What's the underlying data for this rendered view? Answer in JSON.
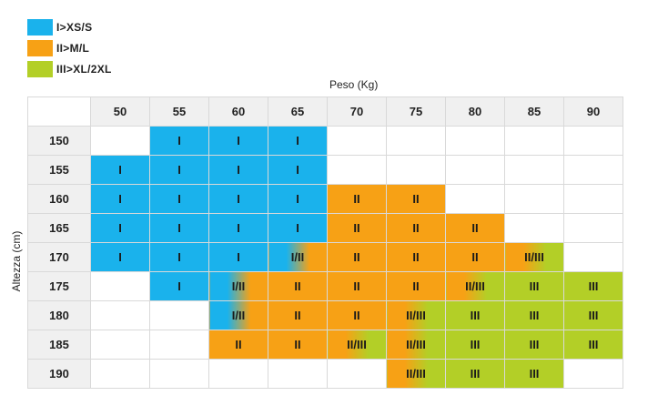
{
  "legend": [
    {
      "label": "I>XS/S",
      "color": "#1ab2ec"
    },
    {
      "label": "II>M/L",
      "color": "#f7a115"
    },
    {
      "label": "III>XL/2XL",
      "color": "#b3cf27"
    }
  ],
  "chart_data": {
    "type": "table",
    "xlabel": "Peso (Kg)",
    "ylabel": "Altezza (cm)",
    "x": [
      "50",
      "55",
      "60",
      "65",
      "70",
      "75",
      "80",
      "85",
      "90"
    ],
    "y": [
      "150",
      "155",
      "160",
      "165",
      "170",
      "175",
      "180",
      "185",
      "190"
    ],
    "cells": [
      [
        "",
        "I",
        "I",
        "I",
        "",
        "",
        "",
        "",
        ""
      ],
      [
        "I",
        "I",
        "I",
        "I",
        "",
        "",
        "",
        "",
        ""
      ],
      [
        "I",
        "I",
        "I",
        "I",
        "II",
        "II",
        "",
        "",
        ""
      ],
      [
        "I",
        "I",
        "I",
        "I",
        "II",
        "II",
        "II",
        "",
        ""
      ],
      [
        "I",
        "I",
        "I",
        "I/II",
        "II",
        "II",
        "II",
        "II/III",
        ""
      ],
      [
        "",
        "I",
        "I/II",
        "II",
        "II",
        "II",
        "II/III",
        "III",
        "III"
      ],
      [
        "",
        "",
        "I/II",
        "II",
        "II",
        "II/III",
        "III",
        "III",
        "III"
      ],
      [
        "",
        "",
        "II",
        "II",
        "II/III",
        "II/III",
        "III",
        "III",
        "III"
      ],
      [
        "",
        "",
        "",
        "",
        "",
        "II/III",
        "III",
        "III",
        ""
      ]
    ]
  }
}
